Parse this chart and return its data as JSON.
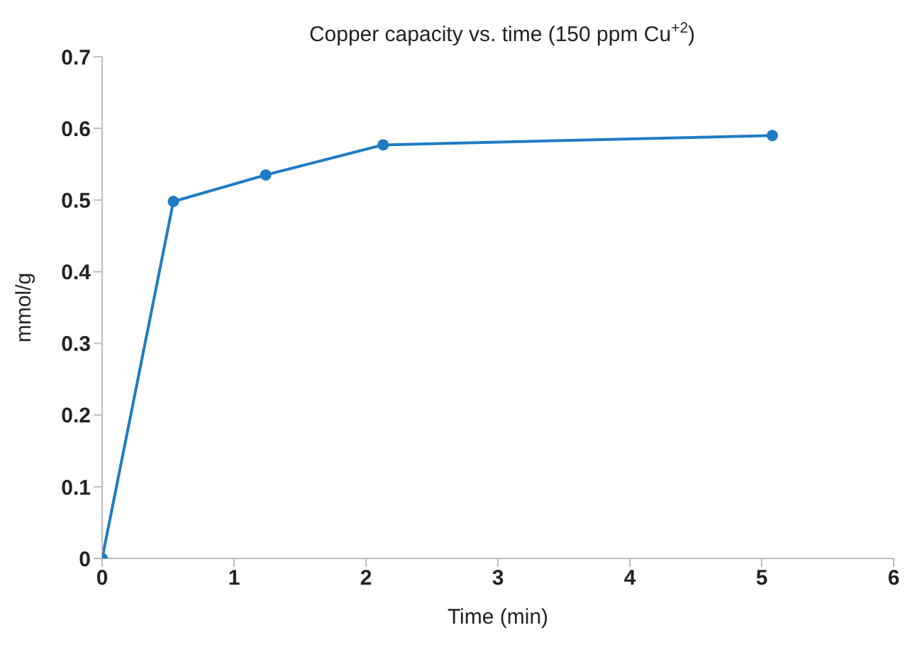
{
  "chart_data": {
    "type": "line",
    "title": "Copper capacity vs. time (150 ppm Cu$^{+2}$)",
    "xlabel": "Time (min)",
    "ylabel": "mmol/g",
    "x": [
      0,
      0.54,
      1.24,
      2.13,
      5.08
    ],
    "series": [
      {
        "color": "#1f7bc4",
        "values": [
          0,
          0.498,
          0.535,
          0.577,
          0.59
        ]
      }
    ],
    "xlim": [
      0,
      6
    ],
    "xticks": [
      0,
      1,
      2,
      3,
      4,
      5,
      6
    ],
    "ylim": [
      0,
      0.7
    ],
    "yticks": [
      0,
      0.1,
      0.2,
      0.3,
      0.4,
      0.5,
      0.6,
      0.7
    ],
    "grid": false,
    "marker": "circle",
    "line_style": "solid"
  }
}
